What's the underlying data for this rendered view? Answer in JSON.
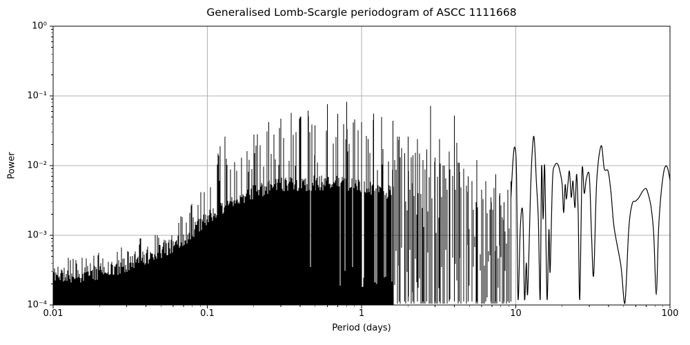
{
  "chart_data": {
    "type": "line",
    "title": "Generalised Lomb-Scargle periodogram of ASCC 1111668",
    "xlabel": "Period (days)",
    "ylabel": "Power",
    "xscale": "log",
    "yscale": "log",
    "xlim": [
      0.01,
      100
    ],
    "ylim": [
      0.0001,
      1
    ],
    "grid": true,
    "legend": "none",
    "line_color": "#000000",
    "grid_color": "#b0b0b0",
    "background_color": "#ffffff",
    "x_tick_labels": [
      "0.01",
      "0.1",
      "1",
      "10",
      "100"
    ],
    "x_tick_values": [
      0.01,
      0.1,
      1,
      10,
      100
    ],
    "y_tick_labels": [
      "10⁰",
      "10⁻¹",
      "10⁻²",
      "10⁻³",
      "10⁻⁴"
    ],
    "y_tick_values": [
      1,
      0.1,
      0.01,
      0.001,
      0.0001
    ],
    "noise_seed": 11,
    "series": [
      {
        "name": "dense-noise-region",
        "render": "filled-columns",
        "p_range": [
          0.01,
          1.6
        ],
        "floor": 0.0001,
        "mass_top_envelope": [
          [
            0.01,
            0.00028
          ],
          [
            0.014,
            0.00026
          ],
          [
            0.02,
            0.0003
          ],
          [
            0.03,
            0.00037
          ],
          [
            0.05,
            0.0006
          ],
          [
            0.07,
            0.00085
          ],
          [
            0.1,
            0.0018
          ],
          [
            0.15,
            0.0033
          ],
          [
            0.2,
            0.0042
          ],
          [
            0.3,
            0.0052
          ],
          [
            0.5,
            0.0056
          ],
          [
            0.8,
            0.0055
          ],
          [
            1.0,
            0.005
          ],
          [
            1.3,
            0.0045
          ],
          [
            1.6,
            0.004
          ]
        ],
        "peak_envelope": [
          [
            0.01,
            0.00048
          ],
          [
            0.02,
            0.00056
          ],
          [
            0.03,
            0.00075
          ],
          [
            0.05,
            0.0013
          ],
          [
            0.07,
            0.002
          ],
          [
            0.1,
            0.011
          ],
          [
            0.13,
            0.026
          ],
          [
            0.16,
            0.015
          ],
          [
            0.2,
            0.028
          ],
          [
            0.25,
            0.042
          ],
          [
            0.3,
            0.047
          ],
          [
            0.35,
            0.057
          ],
          [
            0.4,
            0.05
          ],
          [
            0.45,
            0.061
          ],
          [
            0.5,
            0.038
          ],
          [
            0.6,
            0.076
          ],
          [
            0.7,
            0.055
          ],
          [
            0.8,
            0.082
          ],
          [
            0.9,
            0.046
          ],
          [
            1.0,
            0.042
          ],
          [
            1.1,
            0.024
          ],
          [
            1.2,
            0.056
          ],
          [
            1.35,
            0.05
          ],
          [
            1.6,
            0.044
          ]
        ]
      },
      {
        "name": "resolved-spikes-region",
        "render": "spikes",
        "p_range": [
          1.6,
          9.3
        ],
        "peak_envelope": [
          [
            1.6,
            0.044
          ],
          [
            1.75,
            0.026
          ],
          [
            1.9,
            0.015
          ],
          [
            2.0,
            0.026
          ],
          [
            2.15,
            0.014
          ],
          [
            2.3,
            0.024
          ],
          [
            2.5,
            0.012
          ],
          [
            2.65,
            0.017
          ],
          [
            2.8,
            0.072
          ],
          [
            3.0,
            0.013
          ],
          [
            3.2,
            0.024
          ],
          [
            3.45,
            0.01
          ],
          [
            3.7,
            0.016
          ],
          [
            4.0,
            0.052
          ],
          [
            4.3,
            0.011
          ],
          [
            4.6,
            0.009
          ],
          [
            4.9,
            0.007
          ],
          [
            5.2,
            0.006
          ],
          [
            5.6,
            0.012
          ],
          [
            6.0,
            0.0045
          ],
          [
            6.4,
            0.006
          ],
          [
            6.9,
            0.0035
          ],
          [
            7.4,
            0.0075
          ],
          [
            7.9,
            0.004
          ],
          [
            8.4,
            0.003
          ],
          [
            8.9,
            0.0045
          ],
          [
            9.3,
            0.006
          ]
        ]
      },
      {
        "name": "long-period-smooth-curve",
        "render": "smooth-line",
        "p_range": [
          9.3,
          100
        ],
        "points": [
          [
            9.3,
            0.0035
          ],
          [
            9.6,
            0.012
          ],
          [
            9.85,
            0.0183
          ],
          [
            10.1,
            0.008
          ],
          [
            10.35,
            0.00012
          ],
          [
            10.7,
            0.0013
          ],
          [
            11.1,
            0.0021
          ],
          [
            11.4,
            0.00012
          ],
          [
            11.7,
            0.0004
          ],
          [
            11.95,
            0.00015
          ],
          [
            12.5,
            0.0052
          ],
          [
            12.9,
            0.021
          ],
          [
            13.2,
            0.0233
          ],
          [
            13.6,
            0.006
          ],
          [
            14.0,
            0.0017
          ],
          [
            14.4,
            0.00012
          ],
          [
            14.7,
            0.0095
          ],
          [
            15.05,
            0.0017
          ],
          [
            15.4,
            0.0097
          ],
          [
            15.95,
            0.00012
          ],
          [
            16.4,
            0.0012
          ],
          [
            16.7,
            0.0003
          ],
          [
            17.3,
            0.006
          ],
          [
            17.9,
            0.01
          ],
          [
            18.7,
            0.0105
          ],
          [
            19.4,
            0.008
          ],
          [
            20.0,
            0.0053
          ],
          [
            20.45,
            0.0021
          ],
          [
            20.9,
            0.0053
          ],
          [
            21.3,
            0.0033
          ],
          [
            21.8,
            0.0055
          ],
          [
            22.3,
            0.0083
          ],
          [
            22.9,
            0.0035
          ],
          [
            23.5,
            0.006
          ],
          [
            24.2,
            0.0025
          ],
          [
            24.8,
            0.0075
          ],
          [
            25.4,
            0.002
          ],
          [
            26.0,
            0.00012
          ],
          [
            26.9,
            0.0083
          ],
          [
            27.8,
            0.004
          ],
          [
            28.7,
            0.0065
          ],
          [
            30.0,
            0.007
          ],
          [
            31.0,
            0.001
          ],
          [
            32.0,
            0.00027
          ],
          [
            33.5,
            0.006
          ],
          [
            35.8,
            0.0193
          ],
          [
            37.5,
            0.009
          ],
          [
            39.7,
            0.0083
          ],
          [
            41.5,
            0.004
          ],
          [
            43.4,
            0.0013
          ],
          [
            48.0,
            0.00037
          ],
          [
            51.0,
            0.000105
          ],
          [
            54.0,
            0.0012
          ],
          [
            56.8,
            0.0028
          ],
          [
            60.0,
            0.0031
          ],
          [
            63.0,
            0.0035
          ],
          [
            66.0,
            0.0042
          ],
          [
            69.6,
            0.0047
          ],
          [
            72.0,
            0.004
          ],
          [
            75.5,
            0.0025
          ],
          [
            78.5,
            0.001
          ],
          [
            81.5,
            0.00014
          ],
          [
            84.0,
            0.001
          ],
          [
            86.0,
            0.0025
          ],
          [
            88.5,
            0.005
          ],
          [
            91.0,
            0.008
          ],
          [
            93.5,
            0.0098
          ],
          [
            96.0,
            0.0095
          ],
          [
            98.0,
            0.008
          ],
          [
            100.0,
            0.0062
          ]
        ]
      }
    ]
  }
}
